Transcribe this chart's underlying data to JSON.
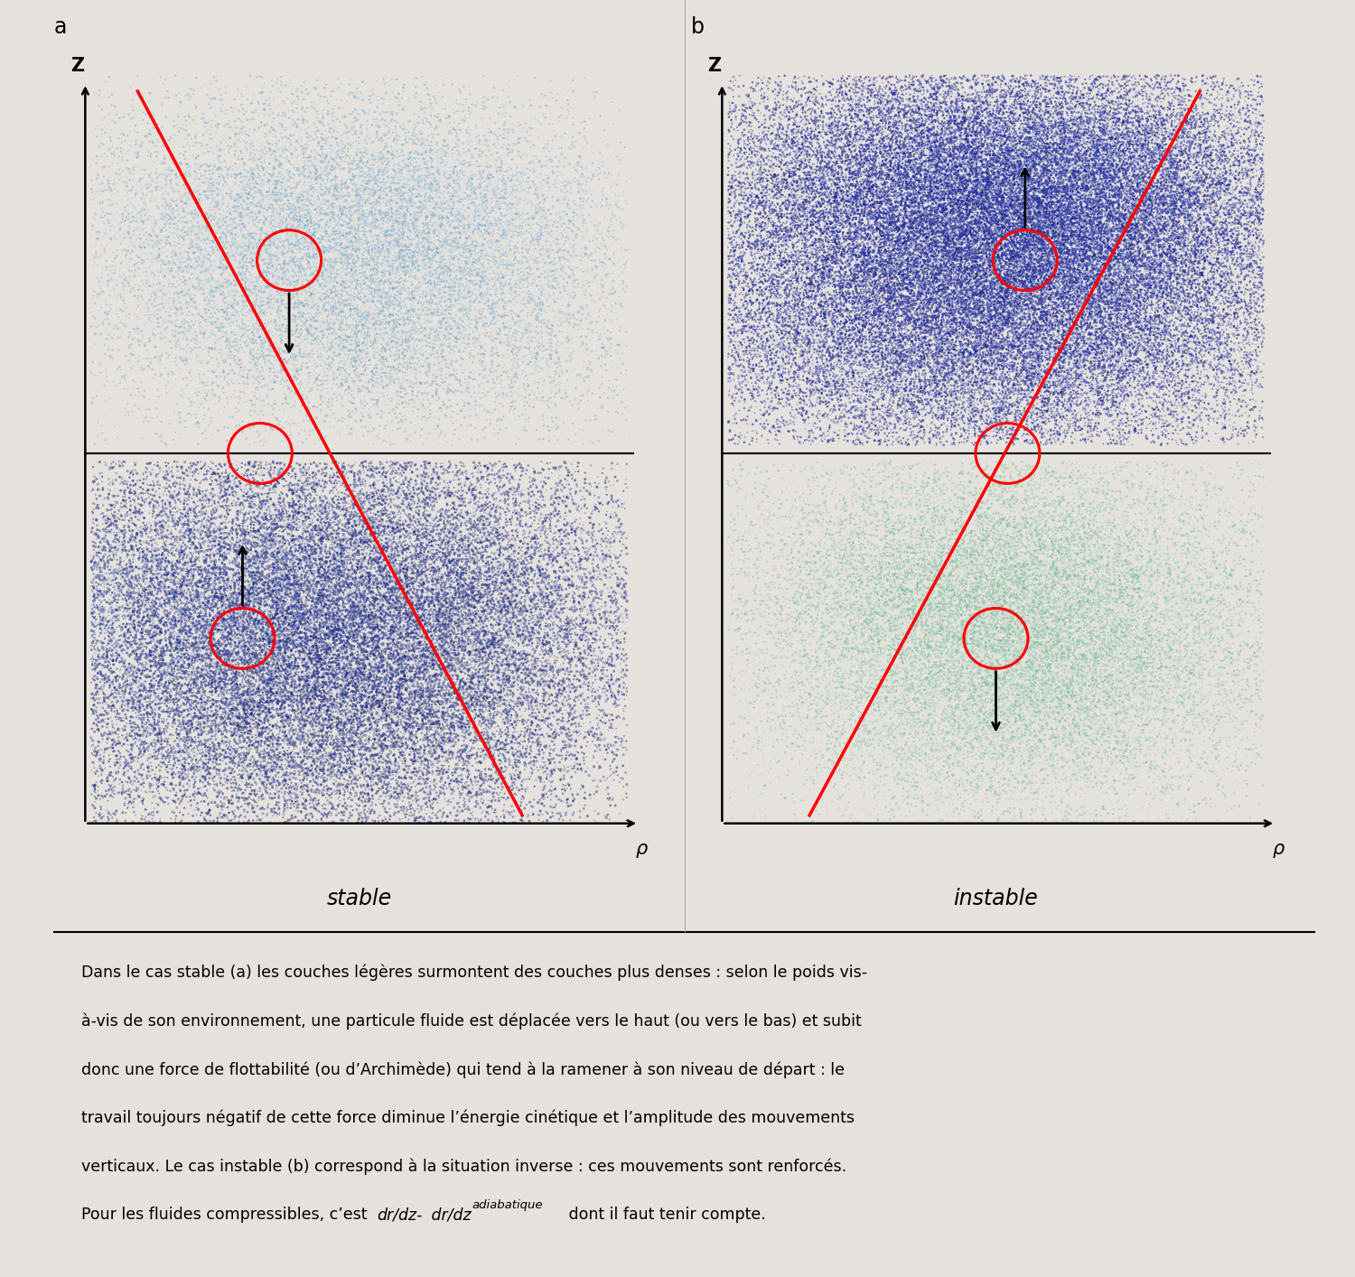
{
  "bg_color": "#e5e1dc",
  "panel_bg": "#ffffff",
  "fig_width": 15.0,
  "fig_height": 14.14,
  "label_a": "a",
  "label_b": "b",
  "label_stable": "stable",
  "label_instable": "instable",
  "label_rho": "ρ",
  "label_z": "Z",
  "text_lines": [
    "Dans le cas stable (a) les couches légères surmontent des couches plus denses : selon le poids vis-",
    "à-vis de son environnement, une particule fluide est déplacée vers le haut (ou vers le bas) et subit",
    "donc une force de flottabilité (ou d’Archimède) qui tend à la ramener à son niveau de départ : le",
    "travail toujours négatif de cette force diminue l’énergie cinétique et l’amplitude des mouvements",
    "verticaux. Le cas instable (b) correspond à la situation inverse : ces mouvements sont renforcés."
  ],
  "text_last_prefix": "Pour les fluides compressibles, c’est ",
  "text_italic1": "dr/dz-",
  "text_italic2": " dr/dz",
  "text_subscript": "adiabatique",
  "text_end": " dont il faut tenir compte."
}
